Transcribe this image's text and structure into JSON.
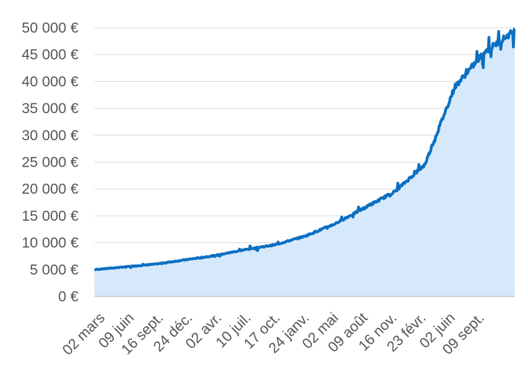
{
  "chart_data": {
    "type": "area",
    "title": "",
    "xlabel": "",
    "ylabel": "",
    "ylim": [
      0,
      50000
    ],
    "grid": true,
    "legend": "none",
    "y_ticks": [
      "0 €",
      "5 000 €",
      "10 000 €",
      "15 000 €",
      "20 000 €",
      "25 000 €",
      "30 000 €",
      "35 000 €",
      "40 000 €",
      "45 000 €",
      "50 000 €"
    ],
    "x_ticks": [
      "02 mars",
      "09 juin",
      "16 sept.",
      "24 déc.",
      "02 avr.",
      "10 juil.",
      "17 oct.",
      "24 janv.",
      "02 mai",
      "09 août",
      "16 nov.",
      "23 févr.",
      "02 juin",
      "09 sept."
    ],
    "colors": {
      "line": "#0a6fc2",
      "fill": "#d6e9fb"
    },
    "series": [
      {
        "x": [
          "02 mars",
          "09 juin",
          "16 sept.",
          "24 déc.",
          "02 avr.",
          "10 juil.",
          "17 oct.",
          "24 janv.",
          "02 mai",
          "09 août",
          "16 nov.",
          "23 févr.",
          "02 juin",
          "09 sept.",
          ""
        ],
        "values": [
          5000,
          5500,
          6000,
          6800,
          7600,
          8700,
          9600,
          11200,
          13500,
          16500,
          19500,
          24500,
          39000,
          45500,
          49500
        ]
      }
    ]
  }
}
